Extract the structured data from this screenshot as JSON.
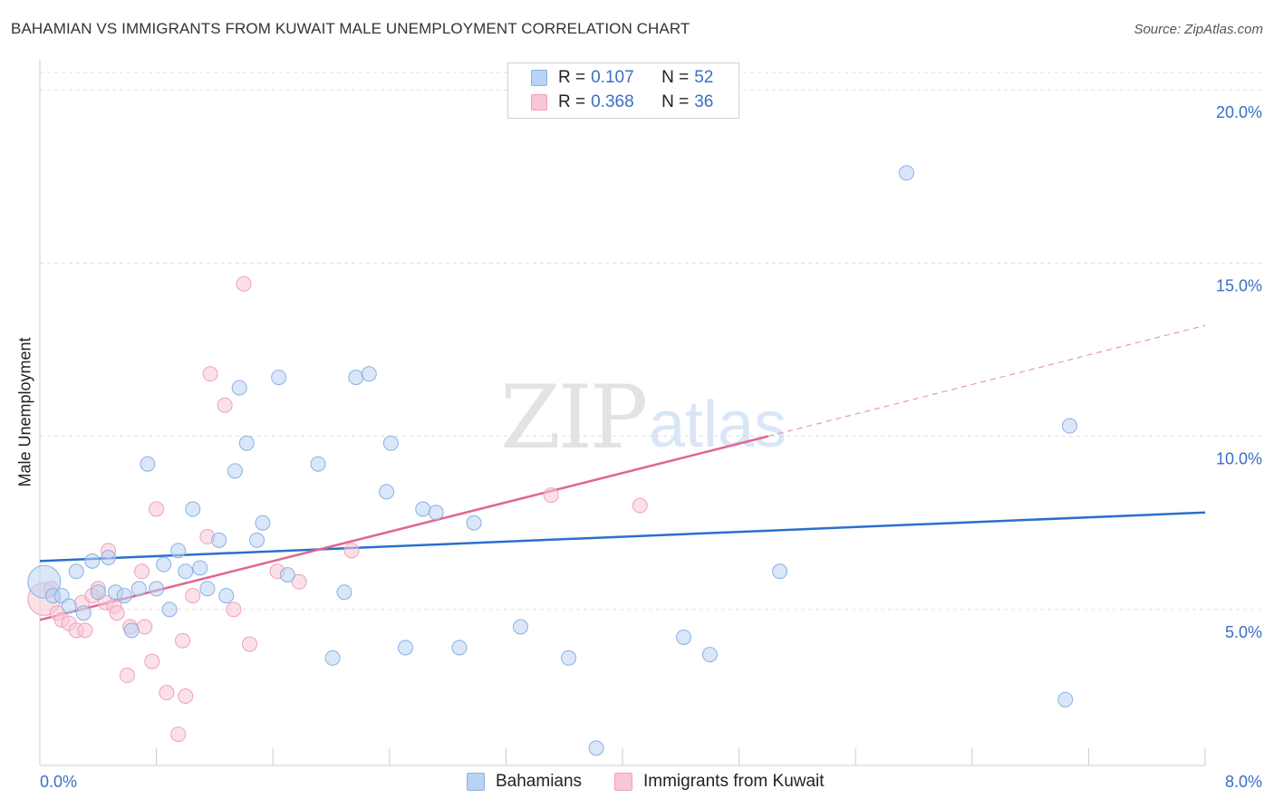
{
  "title": "BAHAMIAN VS IMMIGRANTS FROM KUWAIT MALE UNEMPLOYMENT CORRELATION CHART",
  "source": "Source: ZipAtlas.com",
  "watermark": {
    "zip": "ZIP",
    "atlas": "atlas"
  },
  "legend_top": {
    "rows": [
      {
        "r_label": "R = ",
        "r_value": "0.107",
        "n_label": "N = ",
        "n_value": "52"
      },
      {
        "r_label": "R = ",
        "r_value": "0.368",
        "n_label": "N = ",
        "n_value": "36"
      }
    ]
  },
  "legend_bottom": {
    "items": [
      {
        "label": "Bahamians"
      },
      {
        "label": "Immigrants from Kuwait"
      }
    ]
  },
  "colors": {
    "blue_fill": "#b9d3f3",
    "blue_stroke": "#8ab0e3",
    "blue_line": "#2a6fce",
    "pink_fill": "#f9c6d6",
    "pink_stroke": "#eea0ba",
    "pink_line": "#e0668f",
    "axis_text": "#3a6fc4"
  },
  "chart_data": {
    "type": "scatter",
    "title": "BAHAMIAN VS IMMIGRANTS FROM KUWAIT MALE UNEMPLOYMENT CORRELATION CHART",
    "xlabel": "",
    "ylabel": "Male Unemployment",
    "xlim": [
      0,
      8
    ],
    "ylim": [
      0.5,
      20.5
    ],
    "x_tick_labels": [
      "0.0%",
      "8.0%"
    ],
    "y_ticks": [
      5,
      10,
      15,
      20
    ],
    "y_tick_labels": [
      "5.0%",
      "10.0%",
      "15.0%",
      "20.0%"
    ],
    "grid": "horizontal dashed",
    "legend_position": "top-center",
    "series": [
      {
        "name": "Bahamians",
        "r": 0.107,
        "n": 52,
        "trend": {
          "x": [
            0,
            8
          ],
          "y": [
            6.4,
            7.8
          ]
        },
        "points": [
          {
            "x": 0.03,
            "y": 5.8,
            "big": true
          },
          {
            "x": 0.09,
            "y": 5.4
          },
          {
            "x": 0.15,
            "y": 5.4
          },
          {
            "x": 0.2,
            "y": 5.1
          },
          {
            "x": 0.25,
            "y": 6.1
          },
          {
            "x": 0.3,
            "y": 4.9
          },
          {
            "x": 0.36,
            "y": 6.4
          },
          {
            "x": 0.4,
            "y": 5.5
          },
          {
            "x": 0.47,
            "y": 6.5
          },
          {
            "x": 0.52,
            "y": 5.5
          },
          {
            "x": 0.58,
            "y": 5.4
          },
          {
            "x": 0.63,
            "y": 4.4
          },
          {
            "x": 0.68,
            "y": 5.6
          },
          {
            "x": 0.74,
            "y": 9.2
          },
          {
            "x": 0.8,
            "y": 5.6
          },
          {
            "x": 0.85,
            "y": 6.3
          },
          {
            "x": 0.89,
            "y": 5.0
          },
          {
            "x": 0.95,
            "y": 6.7
          },
          {
            "x": 1.0,
            "y": 6.1
          },
          {
            "x": 1.05,
            "y": 7.9
          },
          {
            "x": 1.1,
            "y": 6.2
          },
          {
            "x": 1.15,
            "y": 5.6
          },
          {
            "x": 1.23,
            "y": 7.0
          },
          {
            "x": 1.28,
            "y": 5.4
          },
          {
            "x": 1.34,
            "y": 9.0
          },
          {
            "x": 1.37,
            "y": 11.4
          },
          {
            "x": 1.42,
            "y": 9.8
          },
          {
            "x": 1.49,
            "y": 7.0
          },
          {
            "x": 1.53,
            "y": 7.5
          },
          {
            "x": 1.64,
            "y": 11.7
          },
          {
            "x": 1.7,
            "y": 6.0
          },
          {
            "x": 1.91,
            "y": 9.2
          },
          {
            "x": 2.01,
            "y": 3.6
          },
          {
            "x": 2.09,
            "y": 5.5
          },
          {
            "x": 2.17,
            "y": 11.7
          },
          {
            "x": 2.26,
            "y": 11.8
          },
          {
            "x": 2.38,
            "y": 8.4
          },
          {
            "x": 2.41,
            "y": 9.8
          },
          {
            "x": 2.51,
            "y": 3.9
          },
          {
            "x": 2.63,
            "y": 7.9
          },
          {
            "x": 2.72,
            "y": 7.8
          },
          {
            "x": 2.88,
            "y": 3.9
          },
          {
            "x": 2.98,
            "y": 7.5
          },
          {
            "x": 3.3,
            "y": 4.5
          },
          {
            "x": 3.63,
            "y": 3.6
          },
          {
            "x": 3.82,
            "y": 1.0
          },
          {
            "x": 4.42,
            "y": 4.2
          },
          {
            "x": 4.6,
            "y": 3.7
          },
          {
            "x": 5.08,
            "y": 6.1
          },
          {
            "x": 5.95,
            "y": 17.6
          },
          {
            "x": 7.04,
            "y": 2.4
          },
          {
            "x": 7.07,
            "y": 10.3
          }
        ]
      },
      {
        "name": "Immigrants from Kuwait",
        "r": 0.368,
        "n": 36,
        "trend": {
          "x": [
            0,
            5.0
          ],
          "y": [
            4.7,
            10.0
          ]
        },
        "trend_dashed": {
          "x": [
            5.0,
            8.0
          ],
          "y": [
            10.0,
            13.2
          ]
        },
        "points": [
          {
            "x": 0.03,
            "y": 5.3,
            "big": true
          },
          {
            "x": 0.08,
            "y": 5.6
          },
          {
            "x": 0.12,
            "y": 4.9
          },
          {
            "x": 0.15,
            "y": 4.7
          },
          {
            "x": 0.2,
            "y": 4.6
          },
          {
            "x": 0.25,
            "y": 4.4
          },
          {
            "x": 0.29,
            "y": 5.2
          },
          {
            "x": 0.31,
            "y": 4.4
          },
          {
            "x": 0.36,
            "y": 5.4
          },
          {
            "x": 0.4,
            "y": 5.6
          },
          {
            "x": 0.45,
            "y": 5.2
          },
          {
            "x": 0.47,
            "y": 6.7
          },
          {
            "x": 0.51,
            "y": 5.1
          },
          {
            "x": 0.53,
            "y": 4.9
          },
          {
            "x": 0.6,
            "y": 3.1
          },
          {
            "x": 0.62,
            "y": 4.5
          },
          {
            "x": 0.7,
            "y": 6.1
          },
          {
            "x": 0.72,
            "y": 4.5
          },
          {
            "x": 0.77,
            "y": 3.5
          },
          {
            "x": 0.8,
            "y": 7.9
          },
          {
            "x": 0.87,
            "y": 2.6
          },
          {
            "x": 0.95,
            "y": 1.4
          },
          {
            "x": 0.98,
            "y": 4.1
          },
          {
            "x": 1.0,
            "y": 2.5
          },
          {
            "x": 1.05,
            "y": 5.4
          },
          {
            "x": 1.15,
            "y": 7.1
          },
          {
            "x": 1.17,
            "y": 11.8
          },
          {
            "x": 1.27,
            "y": 10.9
          },
          {
            "x": 1.33,
            "y": 5.0
          },
          {
            "x": 1.4,
            "y": 14.4
          },
          {
            "x": 1.44,
            "y": 4.0
          },
          {
            "x": 1.63,
            "y": 6.1
          },
          {
            "x": 1.78,
            "y": 5.8
          },
          {
            "x": 2.14,
            "y": 6.7
          },
          {
            "x": 3.51,
            "y": 8.3
          },
          {
            "x": 4.12,
            "y": 8.0
          }
        ]
      }
    ]
  }
}
